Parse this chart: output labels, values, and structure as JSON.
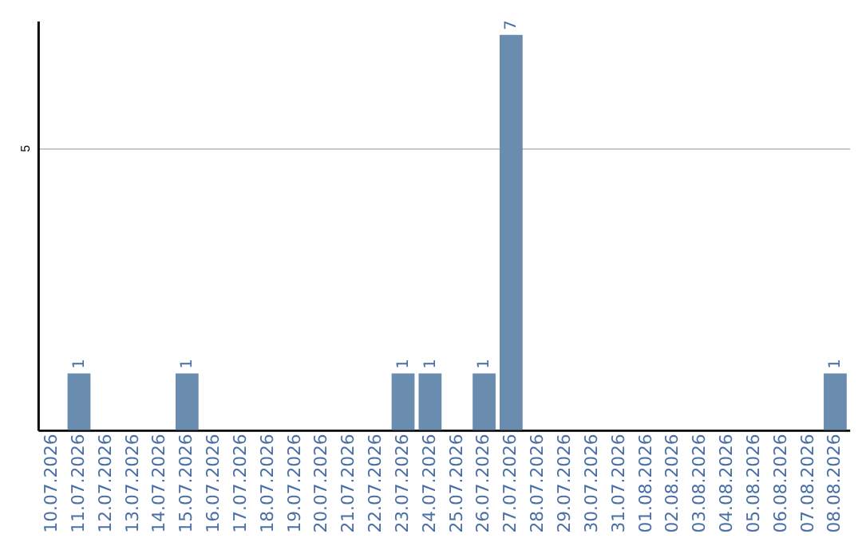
{
  "chart_data": {
    "type": "bar",
    "categories": [
      "10.07.2026",
      "11.07.2026",
      "12.07.2026",
      "13.07.2026",
      "14.07.2026",
      "15.07.2026",
      "16.07.2026",
      "17.07.2026",
      "18.07.2026",
      "19.07.2026",
      "20.07.2026",
      "21.07.2026",
      "22.07.2026",
      "23.07.2026",
      "24.07.2026",
      "25.07.2026",
      "26.07.2026",
      "27.07.2026",
      "28.07.2026",
      "29.07.2026",
      "30.07.2026",
      "31.07.2026",
      "01.08.2026",
      "02.08.2026",
      "03.08.2026",
      "04.08.2026",
      "05.08.2026",
      "06.08.2026",
      "07.08.2026",
      "08.08.2026"
    ],
    "values": [
      0,
      1,
      0,
      0,
      0,
      1,
      0,
      0,
      0,
      0,
      0,
      0,
      0,
      1,
      1,
      0,
      1,
      7,
      0,
      0,
      0,
      0,
      0,
      0,
      0,
      0,
      0,
      0,
      0,
      1
    ],
    "value_labels": [
      null,
      "1",
      null,
      null,
      null,
      "1",
      null,
      null,
      null,
      null,
      null,
      null,
      null,
      "1",
      "1",
      null,
      "1",
      "7",
      null,
      null,
      null,
      null,
      null,
      null,
      null,
      null,
      null,
      null,
      null,
      "1"
    ],
    "color": "#6a8caf",
    "ylim": [
      0,
      7.25
    ],
    "yticks": [
      5
    ],
    "grid": "y"
  }
}
